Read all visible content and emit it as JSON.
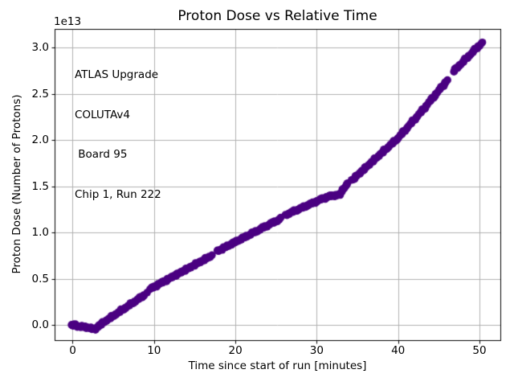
{
  "chart_data": {
    "type": "scatter",
    "title": "Proton Dose vs Relative Time",
    "xlabel": "Time since start of run [minutes]",
    "ylabel": "Proton Dose (Number of Protons)",
    "y_offset_label": "1e13",
    "y_units_multiplier": "1e13",
    "xlim": [
      -2.22,
      52.57
    ],
    "ylim": [
      -0.165,
      3.2
    ],
    "x_ticks": [
      0,
      10,
      20,
      30,
      40,
      50
    ],
    "y_ticks": [
      0.0,
      0.5,
      1.0,
      1.5,
      2.0,
      2.5,
      3.0
    ],
    "grid": true,
    "grid_color": "#b0b0b0",
    "spine_color": "#000000",
    "marker_color": "#4B0082",
    "marker_radius_px": 4.8,
    "point_spacing_min": 0.12,
    "legend": null,
    "annotation": {
      "lines": [
        "ATLAS Upgrade",
        "COLUTAv4",
        " Board 95",
        "Chip 1, Run 222"
      ]
    },
    "segments": [
      {
        "name": "origin-cluster",
        "r": 5.0,
        "step": 0.08,
        "points": [
          [
            -0.12,
            0.0
          ],
          [
            0.28,
            0.005
          ]
        ]
      },
      {
        "name": "pre-run-flat",
        "points": [
          [
            0.55,
            -0.012
          ],
          [
            1.2,
            -0.02
          ],
          [
            2.0,
            -0.03
          ],
          [
            2.55,
            -0.045
          ],
          [
            2.95,
            -0.04
          ],
          [
            3.25,
            -0.005
          ]
        ]
      },
      {
        "name": "ramp-1",
        "points": [
          [
            3.25,
            -0.005
          ],
          [
            8.85,
            0.325
          ]
        ]
      },
      {
        "name": "pause-dot-1",
        "points": [
          [
            9.15,
            0.35
          ]
        ]
      },
      {
        "name": "ramp-2",
        "points": [
          [
            9.55,
            0.39
          ],
          [
            17.1,
            0.75
          ]
        ]
      },
      {
        "name": "ramp-3",
        "points": [
          [
            17.75,
            0.795
          ],
          [
            25.6,
            1.15
          ]
        ]
      },
      {
        "name": "ramp-4",
        "points": [
          [
            26.2,
            1.19
          ],
          [
            30.6,
            1.36
          ],
          [
            31.5,
            1.39
          ],
          [
            32.9,
            1.41
          ]
        ]
      },
      {
        "name": "step-cluster",
        "points": [
          [
            33.05,
            1.45
          ],
          [
            33.85,
            1.53
          ]
        ]
      },
      {
        "name": "ramp-5",
        "points": [
          [
            34.35,
            1.565
          ],
          [
            37.0,
            1.78
          ],
          [
            40.0,
            2.02
          ],
          [
            43.0,
            2.32
          ],
          [
            46.05,
            2.645
          ]
        ]
      },
      {
        "name": "ramp-6",
        "points": [
          [
            46.8,
            2.74
          ],
          [
            50.3,
            3.05
          ]
        ]
      }
    ]
  }
}
